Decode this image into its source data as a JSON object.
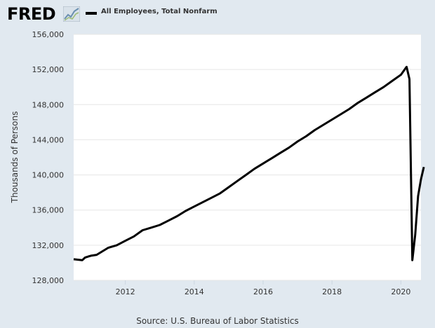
{
  "header": {
    "logo_text": "FRED",
    "logo_icon": "chart-line-icon",
    "legend_label": "All Employees, Total Nonfarm",
    "legend_color": "#000000"
  },
  "source_text": "Source: U.S. Bureau of Labor Statistics",
  "colors": {
    "background": "#e1e9f0",
    "plot_background": "#ffffff",
    "gridline": "#e6e6e6",
    "series": "#000000"
  },
  "chart_data": {
    "type": "line",
    "title": "",
    "xlabel": "",
    "ylabel": "Thousands of Persons",
    "ylim": [
      128000,
      156000
    ],
    "yticks": [
      128000,
      132000,
      136000,
      140000,
      144000,
      148000,
      152000,
      156000
    ],
    "ytick_labels": [
      "128,000",
      "132,000",
      "136,000",
      "140,000",
      "144,000",
      "148,000",
      "152,000",
      "156,000"
    ],
    "xlim": [
      "2010-07",
      "2020-08"
    ],
    "xticks": [
      "2012-01",
      "2014-01",
      "2016-01",
      "2018-01",
      "2020-01"
    ],
    "xtick_labels": [
      "2012",
      "2014",
      "2016",
      "2018",
      "2020"
    ],
    "grid": true,
    "legend_position": "top-left",
    "series": [
      {
        "name": "All Employees, Total Nonfarm",
        "color": "#000000",
        "points": [
          [
            "2010-07",
            130400
          ],
          [
            "2010-10",
            130300
          ],
          [
            "2010-11",
            130600
          ],
          [
            "2011-01",
            130800
          ],
          [
            "2011-03",
            130900
          ],
          [
            "2011-05",
            131300
          ],
          [
            "2011-07",
            131700
          ],
          [
            "2011-10",
            132000
          ],
          [
            "2012-01",
            132500
          ],
          [
            "2012-04",
            133000
          ],
          [
            "2012-07",
            133700
          ],
          [
            "2012-10",
            134000
          ],
          [
            "2013-01",
            134300
          ],
          [
            "2013-04",
            134800
          ],
          [
            "2013-07",
            135300
          ],
          [
            "2013-10",
            135900
          ],
          [
            "2014-01",
            136400
          ],
          [
            "2014-04",
            136900
          ],
          [
            "2014-07",
            137400
          ],
          [
            "2014-10",
            137900
          ],
          [
            "2015-01",
            138600
          ],
          [
            "2015-04",
            139300
          ],
          [
            "2015-07",
            140000
          ],
          [
            "2015-10",
            140700
          ],
          [
            "2016-01",
            141300
          ],
          [
            "2016-04",
            141900
          ],
          [
            "2016-07",
            142500
          ],
          [
            "2016-10",
            143100
          ],
          [
            "2017-01",
            143800
          ],
          [
            "2017-04",
            144400
          ],
          [
            "2017-07",
            145100
          ],
          [
            "2017-10",
            145700
          ],
          [
            "2018-01",
            146300
          ],
          [
            "2018-04",
            146900
          ],
          [
            "2018-07",
            147500
          ],
          [
            "2018-10",
            148200
          ],
          [
            "2019-01",
            148800
          ],
          [
            "2019-04",
            149400
          ],
          [
            "2019-07",
            150000
          ],
          [
            "2019-10",
            150700
          ],
          [
            "2020-01",
            151400
          ],
          [
            "2020-03",
            152300
          ],
          [
            "2020-04",
            150900
          ],
          [
            "2020-05",
            130300
          ],
          [
            "2020-06",
            133200
          ],
          [
            "2020-07",
            137600
          ],
          [
            "2020-08",
            139500
          ],
          [
            "2020-09",
            140900
          ]
        ]
      }
    ]
  }
}
